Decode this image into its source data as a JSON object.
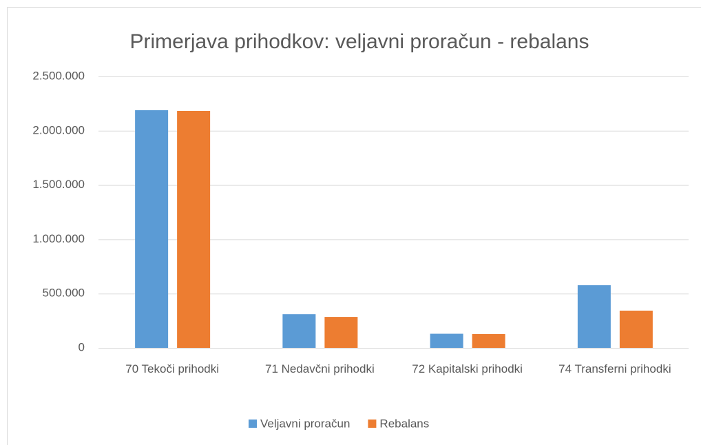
{
  "chart_data": {
    "type": "bar",
    "title": "Primerjava prihodkov: veljavni proračun - rebalans",
    "categories": [
      "70 Tekoči prihodki",
      "71 Nedavčni prihodki",
      "72 Kapitalski prihodki",
      "74 Transferni prihodki"
    ],
    "series": [
      {
        "name": "Veljavni proračun",
        "color": "#5b9bd5",
        "values": [
          2189000,
          310000,
          130000,
          577000
        ]
      },
      {
        "name": "Rebalans",
        "color": "#ed7d31",
        "values": [
          2183000,
          285000,
          127000,
          343000
        ]
      }
    ],
    "ylim": [
      0,
      2500000
    ],
    "yticks": [
      0,
      {
        "value": 500000,
        "label": "500.000"
      },
      {
        "value": 1000000,
        "label": "1.000.000"
      },
      {
        "value": 1500000,
        "label": "1.500.000"
      },
      {
        "value": 2000000,
        "label": "2.000.000"
      },
      {
        "value": 2500000,
        "label": "2.500.000"
      }
    ],
    "grid": true,
    "legend": "bottom"
  }
}
